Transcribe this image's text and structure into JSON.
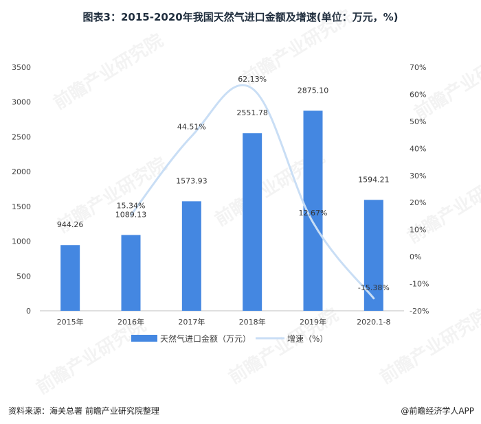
{
  "title": "图表3：2015-2020年我国天然气进口金额及增速(单位：万元，%)",
  "footer": {
    "source": "资料来源：海关总署   前瞻产业研究院整理",
    "brand": "@前瞻经济学人APP"
  },
  "watermark": "前瞻产业研究院",
  "colors": {
    "bar": "#4487e1",
    "line": "#c9def5",
    "axis": "#bfbfbf",
    "text": "#404040"
  },
  "chart_data": {
    "type": "bar",
    "categories": [
      "2015年",
      "2016年",
      "2017年",
      "2018年",
      "2019年",
      "2020.1-8"
    ],
    "series": [
      {
        "name": "天然气进口金额（万元）",
        "type": "bar",
        "axis": "left",
        "values": [
          944.26,
          1089.13,
          1573.93,
          2551.78,
          2875.1,
          1594.21
        ],
        "labels": [
          "944.26",
          "1089.13",
          "1573.93",
          "2551.78",
          "2875.10",
          "1594.21"
        ]
      },
      {
        "name": "增速（%）",
        "type": "line",
        "axis": "right",
        "values": [
          null,
          15.34,
          44.51,
          62.13,
          12.67,
          -15.38
        ],
        "labels": [
          "",
          "15.34%",
          "44.51%",
          "62.13%",
          "12.67%",
          "-15.38%"
        ]
      }
    ],
    "left_axis": {
      "min": 0,
      "max": 3500,
      "step": 500,
      "ticks": [
        "0",
        "500",
        "1000",
        "1500",
        "2000",
        "2500",
        "3000",
        "3500"
      ]
    },
    "right_axis": {
      "min": -20,
      "max": 70,
      "step": 10,
      "ticks": [
        "-20%",
        "-10%",
        "0%",
        "10%",
        "20%",
        "30%",
        "40%",
        "50%",
        "60%",
        "70%"
      ]
    },
    "legend_position": "bottom",
    "grid": false
  }
}
